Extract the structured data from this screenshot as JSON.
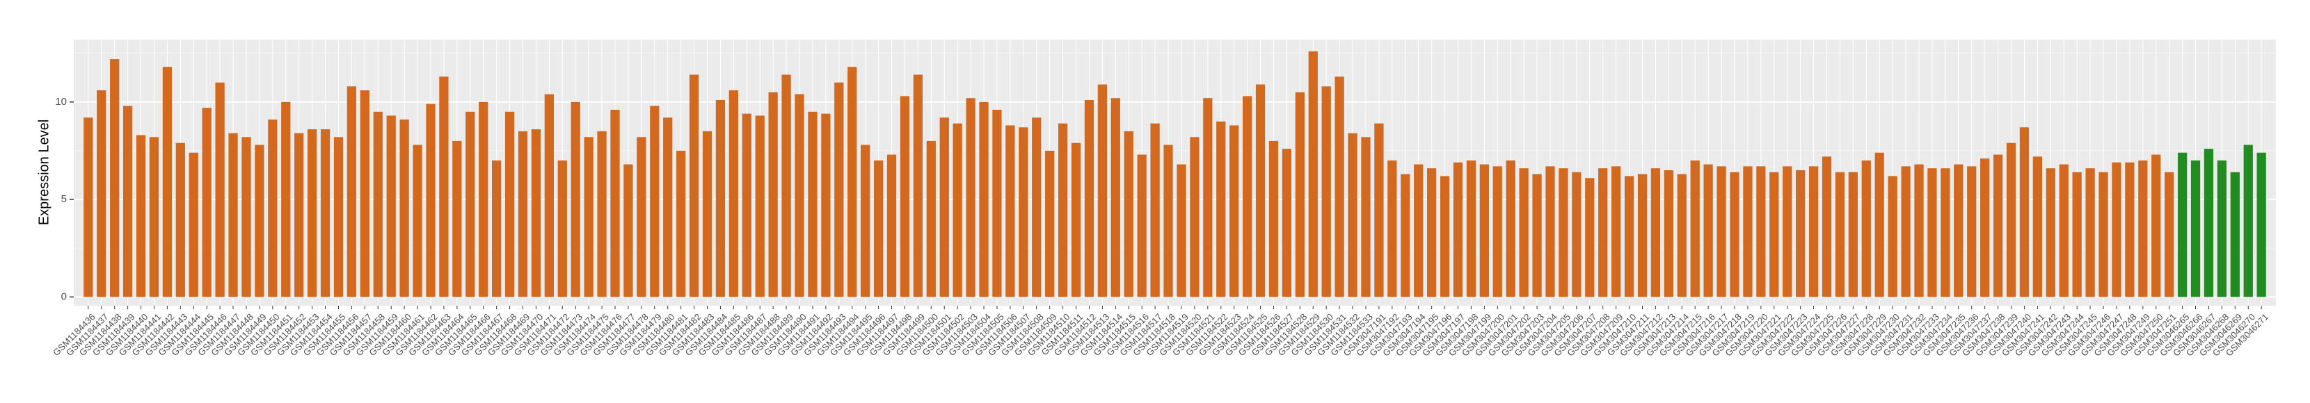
{
  "chart_data": {
    "type": "bar",
    "y_label": "Expression Level",
    "categories": [
      "GSM1184436",
      "GSM1184437",
      "GSM1184438",
      "GSM1184439",
      "GSM1184440",
      "GSM1184441",
      "GSM1184442",
      "GSM1184443",
      "GSM1184444",
      "GSM1184445",
      "GSM1184446",
      "GSM1184447",
      "GSM1184448",
      "GSM1184449",
      "GSM1184450",
      "GSM1184451",
      "GSM1184452",
      "GSM1184453",
      "GSM1184454",
      "GSM1184455",
      "GSM1184456",
      "GSM1184457",
      "GSM1184458",
      "GSM1184459",
      "GSM1184460",
      "GSM1184461",
      "GSM1184462",
      "GSM1184463",
      "GSM1184464",
      "GSM1184465",
      "GSM1184466",
      "GSM1184467",
      "GSM1184468",
      "GSM1184469",
      "GSM1184470",
      "GSM1184471",
      "GSM1184472",
      "GSM1184473",
      "GSM1184474",
      "GSM1184475",
      "GSM1184476",
      "GSM1184477",
      "GSM1184478",
      "GSM1184479",
      "GSM1184480",
      "GSM1184481",
      "GSM1184482",
      "GSM1184483",
      "GSM1184484",
      "GSM1184485",
      "GSM1184486",
      "GSM1184487",
      "GSM1184488",
      "GSM1184489",
      "GSM1184490",
      "GSM1184491",
      "GSM1184492",
      "GSM1184493",
      "GSM1184494",
      "GSM1184495",
      "GSM1184496",
      "GSM1184497",
      "GSM1184498",
      "GSM1184499",
      "GSM1184500",
      "GSM1184501",
      "GSM1184502",
      "GSM1184503",
      "GSM1184504",
      "GSM1184505",
      "GSM1184506",
      "GSM1184507",
      "GSM1184508",
      "GSM1184509",
      "GSM1184510",
      "GSM1184511",
      "GSM1184512",
      "GSM1184513",
      "GSM1184514",
      "GSM1184515",
      "GSM1184516",
      "GSM1184517",
      "GSM1184518",
      "GSM1184519",
      "GSM1184520",
      "GSM1184521",
      "GSM1184522",
      "GSM1184523",
      "GSM1184524",
      "GSM1184525",
      "GSM1184526",
      "GSM1184527",
      "GSM1184528",
      "GSM1184529",
      "GSM1184530",
      "GSM1184531",
      "GSM1184532",
      "GSM1184533",
      "GSM3047191",
      "GSM3047192",
      "GSM3047193",
      "GSM3047194",
      "GSM3047195",
      "GSM3047196",
      "GSM3047197",
      "GSM3047198",
      "GSM3047199",
      "GSM3047200",
      "GSM3047201",
      "GSM3047202",
      "GSM3047203",
      "GSM3047204",
      "GSM3047205",
      "GSM3047206",
      "GSM3047207",
      "GSM3047208",
      "GSM3047209",
      "GSM3047210",
      "GSM3047211",
      "GSM3047212",
      "GSM3047213",
      "GSM3047214",
      "GSM3047215",
      "GSM3047216",
      "GSM3047217",
      "GSM3047218",
      "GSM3047219",
      "GSM3047220",
      "GSM3047221",
      "GSM3047222",
      "GSM3047223",
      "GSM3047224",
      "GSM3047225",
      "GSM3047226",
      "GSM3047227",
      "GSM3047228",
      "GSM3047229",
      "GSM3047230",
      "GSM3047231",
      "GSM3047232",
      "GSM3047233",
      "GSM3047234",
      "GSM3047235",
      "GSM3047236",
      "GSM3047237",
      "GSM3047238",
      "GSM3047239",
      "GSM3047240",
      "GSM3047241",
      "GSM3047242",
      "GSM3047243",
      "GSM3047244",
      "GSM3047245",
      "GSM3047246",
      "GSM3047247",
      "GSM3047248",
      "GSM3047249",
      "GSM3047250",
      "GSM3047251",
      "GSM3046265",
      "GSM3046266",
      "GSM3046267",
      "GSM3046268",
      "GSM3046269",
      "GSM3046270",
      "GSM3046271"
    ],
    "values": [
      9.2,
      10.6,
      12.2,
      9.8,
      8.3,
      8.2,
      11.8,
      7.9,
      7.4,
      9.7,
      11.0,
      8.4,
      8.2,
      7.8,
      9.1,
      10.0,
      8.4,
      8.6,
      8.6,
      8.2,
      10.8,
      10.6,
      9.5,
      9.3,
      9.1,
      7.8,
      9.9,
      11.3,
      8.0,
      9.5,
      10.0,
      7.0,
      9.5,
      8.5,
      8.6,
      10.4,
      7.0,
      10.0,
      8.2,
      8.5,
      9.6,
      6.8,
      8.2,
      9.8,
      9.2,
      7.5,
      11.4,
      8.5,
      10.1,
      10.6,
      9.4,
      9.3,
      10.5,
      11.4,
      10.4,
      9.5,
      9.4,
      11.0,
      11.8,
      7.8,
      7.0,
      7.3,
      10.3,
      11.4,
      8.0,
      9.2,
      8.9,
      10.2,
      10.0,
      9.6,
      8.8,
      8.7,
      9.2,
      7.5,
      8.9,
      7.9,
      10.1,
      10.9,
      10.2,
      8.5,
      7.3,
      8.9,
      7.8,
      6.8,
      8.2,
      10.2,
      9.0,
      8.8,
      10.3,
      10.9,
      8.0,
      7.6,
      10.5,
      12.6,
      10.8,
      11.3,
      8.4,
      8.2,
      8.9,
      7.0,
      6.3,
      6.8,
      6.6,
      6.2,
      6.9,
      7.0,
      6.8,
      6.7,
      7.0,
      6.6,
      6.3,
      6.7,
      6.6,
      6.4,
      6.1,
      6.6,
      6.7,
      6.2,
      6.3,
      6.6,
      6.5,
      6.3,
      7.0,
      6.8,
      6.7,
      6.4,
      6.7,
      6.7,
      6.4,
      6.7,
      6.5,
      6.7,
      7.2,
      6.4,
      6.4,
      7.0,
      7.4,
      6.2,
      6.7,
      6.8,
      6.6,
      6.6,
      6.8,
      6.7,
      7.1,
      7.3,
      7.9,
      8.7,
      7.2,
      6.6,
      6.8,
      6.4,
      6.6,
      6.4,
      6.9,
      6.9,
      7.0,
      7.3,
      6.4,
      7.4,
      7.0,
      7.6,
      7.0,
      6.4,
      7.8,
      7.4
    ],
    "colors": [
      "#d2691e",
      "#d2691e",
      "#d2691e",
      "#d2691e",
      "#d2691e",
      "#d2691e",
      "#d2691e",
      "#d2691e",
      "#d2691e",
      "#d2691e",
      "#d2691e",
      "#d2691e",
      "#d2691e",
      "#d2691e",
      "#d2691e",
      "#d2691e",
      "#d2691e",
      "#d2691e",
      "#d2691e",
      "#d2691e",
      "#d2691e",
      "#d2691e",
      "#d2691e",
      "#d2691e",
      "#d2691e",
      "#d2691e",
      "#d2691e",
      "#d2691e",
      "#d2691e",
      "#d2691e",
      "#d2691e",
      "#d2691e",
      "#d2691e",
      "#d2691e",
      "#d2691e",
      "#d2691e",
      "#d2691e",
      "#d2691e",
      "#d2691e",
      "#d2691e",
      "#d2691e",
      "#d2691e",
      "#d2691e",
      "#d2691e",
      "#d2691e",
      "#d2691e",
      "#d2691e",
      "#d2691e",
      "#d2691e",
      "#d2691e",
      "#d2691e",
      "#d2691e",
      "#d2691e",
      "#d2691e",
      "#d2691e",
      "#d2691e",
      "#d2691e",
      "#d2691e",
      "#d2691e",
      "#d2691e",
      "#d2691e",
      "#d2691e",
      "#d2691e",
      "#d2691e",
      "#d2691e",
      "#d2691e",
      "#d2691e",
      "#d2691e",
      "#d2691e",
      "#d2691e",
      "#d2691e",
      "#d2691e",
      "#d2691e",
      "#d2691e",
      "#d2691e",
      "#d2691e",
      "#d2691e",
      "#d2691e",
      "#d2691e",
      "#d2691e",
      "#d2691e",
      "#d2691e",
      "#d2691e",
      "#d2691e",
      "#d2691e",
      "#d2691e",
      "#d2691e",
      "#d2691e",
      "#d2691e",
      "#d2691e",
      "#d2691e",
      "#d2691e",
      "#d2691e",
      "#d2691e",
      "#d2691e",
      "#d2691e",
      "#d2691e",
      "#d2691e",
      "#d2691e",
      "#d2691e",
      "#d2691e",
      "#d2691e",
      "#d2691e",
      "#d2691e",
      "#d2691e",
      "#d2691e",
      "#d2691e",
      "#d2691e",
      "#d2691e",
      "#d2691e",
      "#d2691e",
      "#d2691e",
      "#d2691e",
      "#d2691e",
      "#d2691e",
      "#d2691e",
      "#d2691e",
      "#d2691e",
      "#d2691e",
      "#d2691e",
      "#d2691e",
      "#d2691e",
      "#d2691e",
      "#d2691e",
      "#d2691e",
      "#d2691e",
      "#d2691e",
      "#d2691e",
      "#d2691e",
      "#d2691e",
      "#d2691e",
      "#d2691e",
      "#d2691e",
      "#d2691e",
      "#d2691e",
      "#d2691e",
      "#d2691e",
      "#d2691e",
      "#d2691e",
      "#d2691e",
      "#d2691e",
      "#d2691e",
      "#d2691e",
      "#d2691e",
      "#d2691e",
      "#d2691e",
      "#d2691e",
      "#d2691e",
      "#d2691e",
      "#d2691e",
      "#d2691e",
      "#d2691e",
      "#d2691e",
      "#d2691e",
      "#d2691e",
      "#d2691e",
      "#d2691e",
      "#d2691e",
      "#d2691e",
      "#228b22",
      "#228b22",
      "#228b22",
      "#228b22",
      "#228b22",
      "#228b22",
      "#228b22"
    ],
    "ylim": [
      -0.45,
      13.2
    ],
    "yticks": [
      0,
      5,
      10
    ],
    "grid": true
  }
}
